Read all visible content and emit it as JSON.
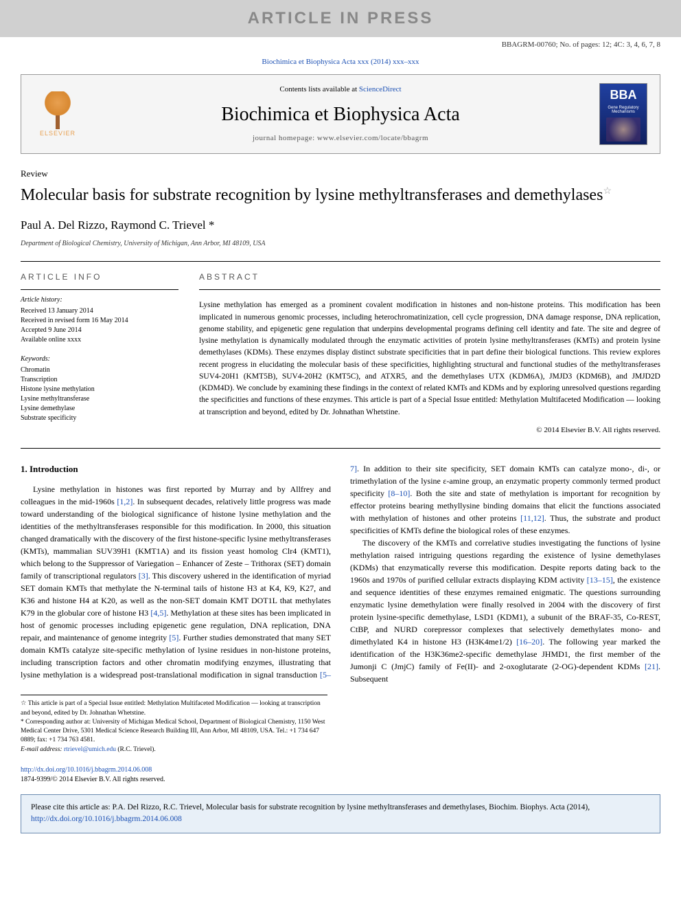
{
  "banner": "ARTICLE IN PRESS",
  "docInfo": "BBAGRM-00760; No. of pages: 12; 4C: 3, 4, 6, 7, 8",
  "journalRef": "Biochimica et Biophysica Acta xxx (2014) xxx–xxx",
  "header": {
    "contentsPrefix": "Contents lists available at ",
    "contentsLink": "ScienceDirect",
    "journalTitle": "Biochimica et Biophysica Acta",
    "homepage": "journal homepage: www.elsevier.com/locate/bbagrm",
    "elsevier": "ELSEVIER",
    "bba": "BBA",
    "bbaSub": "Gene Regulatory Mechanisms"
  },
  "article": {
    "reviewLabel": "Review",
    "title": "Molecular basis for substrate recognition by lysine methyltransferases and demethylases",
    "authors": "Paul A. Del Rizzo, Raymond C. Trievel *",
    "affiliation": "Department of Biological Chemistry, University of Michigan, Ann Arbor, MI 48109, USA"
  },
  "info": {
    "sectionLabel": "ARTICLE INFO",
    "historyTitle": "Article history:",
    "history": [
      "Received 13 January 2014",
      "Received in revised form 16 May 2014",
      "Accepted 9 June 2014",
      "Available online xxxx"
    ],
    "keywordsTitle": "Keywords:",
    "keywords": [
      "Chromatin",
      "Transcription",
      "Histone lysine methylation",
      "Lysine methyltransferase",
      "Lysine demethylase",
      "Substrate specificity"
    ]
  },
  "abstract": {
    "sectionLabel": "ABSTRACT",
    "text": "Lysine methylation has emerged as a prominent covalent modification in histones and non-histone proteins. This modification has been implicated in numerous genomic processes, including heterochromatinization, cell cycle progression, DNA damage response, DNA replication, genome stability, and epigenetic gene regulation that underpins developmental programs defining cell identity and fate. The site and degree of lysine methylation is dynamically modulated through the enzymatic activities of protein lysine methyltransferases (KMTs) and protein lysine demethylases (KDMs). These enzymes display distinct substrate specificities that in part define their biological functions. This review explores recent progress in elucidating the molecular basis of these specificities, highlighting structural and functional studies of the methyltransferases SUV4-20H1 (KMT5B), SUV4-20H2 (KMT5C), and ATXR5, and the demethylases UTX (KDM6A), JMJD3 (KDM6B), and JMJD2D (KDM4D). We conclude by examining these findings in the context of related KMTs and KDMs and by exploring unresolved questions regarding the specificities and functions of these enzymes. This article is part of a Special Issue entitled: Methylation Multifaceted Modification — looking at transcription and beyond, edited by Dr. Johnathan Whetstine.",
    "copyright": "© 2014 Elsevier B.V. All rights reserved."
  },
  "intro": {
    "heading": "1. Introduction",
    "p1a": "Lysine methylation in histones was first reported by Murray and by Allfrey and colleagues in the mid-1960s ",
    "p1ref1": "[1,2]",
    "p1b": ". In subsequent decades, relatively little progress was made toward understanding of the biological significance of histone lysine methylation and the identities of the methyltransferases responsible for this modification. In 2000, this situation changed dramatically with the discovery of the first histone-specific lysine methyltransferases (KMTs), mammalian SUV39H1 (KMT1A) and its fission yeast homolog Clr4 (KMT1), which belong to the Suppressor of Variegation – Enhancer of Zeste – Trithorax (SET) domain family of transcriptional regulators ",
    "p1ref2": "[3]",
    "p1c": ". This discovery ushered in the identification of myriad SET domain KMTs that methylate the N-terminal tails of histone H3 at K4, K9, K27, and K36 and histone H4 at K20, as well as the non-SET domain KMT DOT1L that methylates K79 in the globular core of histone H3 ",
    "p1ref3": "[4,5]",
    "p1d": ". Methylation at these sites has been implicated in host of genomic processes including epigenetic gene regulation, DNA replication, DNA repair, and maintenance of genome integrity ",
    "p1ref4": "[5]",
    "p1e": ". Further studies demonstrated that many SET domain KMTs catalyze site-specific methylation of lysine residues in non-histone proteins, including transcription factors and other chromatin modifying enzymes, illustrating that lysine methylation is a widespread post-translational modification in signal transduction ",
    "p1ref5": "[5–7]",
    "p1f": ". In addition to their site specificity, SET domain KMTs can catalyze mono-, di-, or trimethylation of the lysine ε-amine group, an enzymatic property commonly termed product specificity ",
    "p1ref6": "[8–10]",
    "p1g": ". Both the site and state of methylation is important for recognition by effector proteins bearing methyllysine binding domains that elicit the functions associated with methylation of histones and other proteins ",
    "p1ref7": "[11,12]",
    "p1h": ". Thus, the substrate and product specificities of KMTs define the biological roles of these enzymes.",
    "p2a": "The discovery of the KMTs and correlative studies investigating the functions of lysine methylation raised intriguing questions regarding the existence of lysine demethylases (KDMs) that enzymatically reverse this modification. Despite reports dating back to the 1960s and 1970s of purified cellular extracts displaying KDM activity ",
    "p2ref1": "[13–15]",
    "p2b": ", the existence and sequence identities of these enzymes remained enigmatic. The questions surrounding enzymatic lysine demethylation were finally resolved in 2004 with the discovery of first protein lysine-specific demethylase, LSD1 (KDM1), a subunit of the BRAF-35, Co-REST, CtBP, and NURD corepressor complexes that selectively demethylates mono- and dimethylated K4 in histone H3 (H3K4me1/2) ",
    "p2ref2": "[16–20]",
    "p2c": ". The following year marked the identification of the H3K36me2-specific demethylase JHMD1, the first member of the Jumonji C (JmjC) family of Fe(II)- and 2-oxoglutarate (2-OG)-dependent KDMs ",
    "p2ref3": "[21]",
    "p2d": ". Subsequent"
  },
  "footnotes": {
    "star": "☆  This article is part of a Special Issue entitled: Methylation Multifaceted Modification — looking at transcription and beyond, edited by Dr. Johnathan Whetstine.",
    "corr": "*  Corresponding author at: University of Michigan Medical School, Department of Biological Chemistry, 1150 West Medical Center Drive, 5301 Medical Science Research Building III, Ann Arbor, MI 48109, USA. Tel.: +1 734 647 0889; fax: +1 734 763 4581.",
    "emailLabel": "E-mail address: ",
    "email": "rtrievel@umich.edu",
    "emailSuffix": " (R.C. Trievel)."
  },
  "doi": {
    "link": "http://dx.doi.org/10.1016/j.bbagrm.2014.06.008",
    "issn": "1874-9399/© 2014 Elsevier B.V. All rights reserved."
  },
  "citeBox": {
    "prefix": "Please cite this article as: P.A. Del Rizzo, R.C. Trievel, Molecular basis for substrate recognition by lysine methyltransferases and demethylases, Biochim. Biophys. Acta (2014), ",
    "link": "http://dx.doi.org/10.1016/j.bbagrm.2014.06.008"
  },
  "colors": {
    "link": "#1a4fb3",
    "bannerBg": "#d0d0d0",
    "headerBg": "#f5f5f5",
    "citeBg": "#e8f0f8",
    "citeBorder": "#6a8ab0"
  }
}
